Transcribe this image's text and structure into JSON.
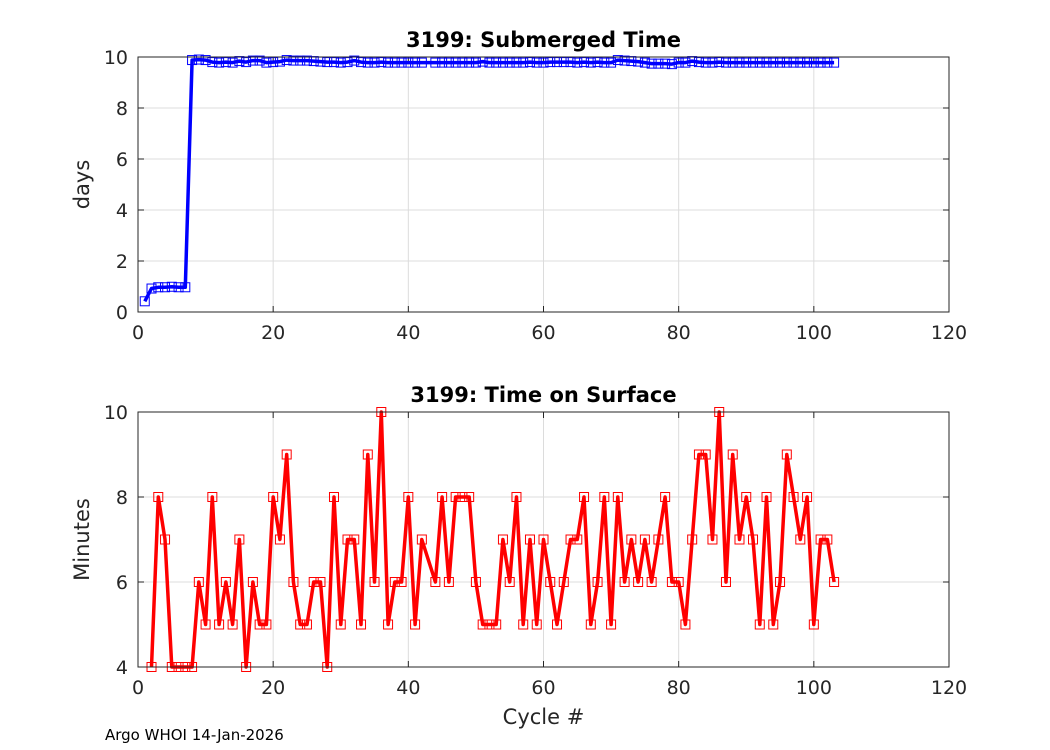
{
  "footer": "Argo WHOI 14-Jan-2026",
  "chart_data": [
    {
      "type": "line",
      "title": "3199: Submerged Time",
      "xlabel": "",
      "ylabel": "days",
      "xlim": [
        0,
        120
      ],
      "ylim": [
        0,
        10
      ],
      "xticks": [
        0,
        20,
        40,
        60,
        80,
        100,
        120
      ],
      "yticks": [
        0,
        2,
        4,
        6,
        8,
        10
      ],
      "grid": true,
      "series": [
        {
          "name": "Submerged Time",
          "color": "#0000ff",
          "marker": "square",
          "x": [
            1,
            2,
            3,
            4,
            5,
            6,
            7,
            8,
            9,
            10,
            11,
            12,
            13,
            14,
            15,
            16,
            17,
            18,
            19,
            20,
            21,
            22,
            23,
            24,
            25,
            26,
            27,
            28,
            29,
            30,
            31,
            32,
            33,
            34,
            35,
            36,
            37,
            38,
            39,
            40,
            41,
            42,
            44,
            45,
            46,
            47,
            48,
            49,
            50,
            51,
            52,
            53,
            54,
            55,
            56,
            57,
            58,
            59,
            60,
            61,
            62,
            63,
            64,
            65,
            66,
            67,
            68,
            69,
            70,
            71,
            72,
            73,
            74,
            75,
            76,
            77,
            78,
            79,
            80,
            81,
            82,
            83,
            84,
            85,
            86,
            87,
            88,
            89,
            90,
            91,
            92,
            93,
            94,
            95,
            96,
            97,
            98,
            99,
            100,
            101,
            102,
            103
          ],
          "values": [
            0.42,
            0.92,
            0.97,
            0.97,
            0.99,
            0.97,
            0.97,
            9.88,
            9.9,
            9.88,
            9.8,
            9.78,
            9.8,
            9.78,
            9.84,
            9.8,
            9.86,
            9.86,
            9.78,
            9.8,
            9.82,
            9.88,
            9.86,
            9.86,
            9.86,
            9.84,
            9.82,
            9.8,
            9.8,
            9.78,
            9.8,
            9.86,
            9.8,
            9.78,
            9.78,
            9.8,
            9.78,
            9.78,
            9.78,
            9.78,
            9.78,
            9.78,
            9.78,
            9.78,
            9.78,
            9.78,
            9.78,
            9.78,
            9.78,
            9.82,
            9.78,
            9.78,
            9.78,
            9.78,
            9.78,
            9.78,
            9.8,
            9.78,
            9.78,
            9.8,
            9.8,
            9.8,
            9.8,
            9.78,
            9.8,
            9.78,
            9.8,
            9.78,
            9.78,
            9.88,
            9.86,
            9.84,
            9.82,
            9.78,
            9.74,
            9.74,
            9.74,
            9.72,
            9.78,
            9.78,
            9.84,
            9.8,
            9.78,
            9.78,
            9.8,
            9.78,
            9.78,
            9.78,
            9.78,
            9.78,
            9.78,
            9.78,
            9.78,
            9.78,
            9.78,
            9.78,
            9.78,
            9.78,
            9.78,
            9.78,
            9.78,
            9.78
          ]
        }
      ]
    },
    {
      "type": "line",
      "title": "3199: Time on Surface",
      "xlabel": "Cycle #",
      "ylabel": "Minutes",
      "xlim": [
        0,
        120
      ],
      "ylim": [
        4,
        10
      ],
      "xticks": [
        0,
        20,
        40,
        60,
        80,
        100,
        120
      ],
      "yticks": [
        4,
        6,
        8,
        10
      ],
      "grid": true,
      "series": [
        {
          "name": "Time on Surface",
          "color": "#ff0000",
          "marker": "square",
          "x": [
            2,
            3,
            4,
            5,
            6,
            7,
            8,
            9,
            10,
            11,
            12,
            13,
            14,
            15,
            16,
            17,
            18,
            19,
            20,
            21,
            22,
            23,
            24,
            25,
            26,
            27,
            28,
            29,
            30,
            31,
            32,
            33,
            34,
            35,
            36,
            37,
            38,
            39,
            40,
            41,
            42,
            44,
            45,
            46,
            47,
            48,
            49,
            50,
            51,
            52,
            53,
            54,
            55,
            56,
            57,
            58,
            59,
            60,
            61,
            62,
            63,
            64,
            65,
            66,
            67,
            68,
            69,
            70,
            71,
            72,
            73,
            74,
            75,
            76,
            77,
            78,
            79,
            80,
            81,
            82,
            83,
            84,
            85,
            86,
            87,
            88,
            89,
            90,
            91,
            92,
            93,
            94,
            95,
            96,
            97,
            98,
            99,
            100,
            101,
            102,
            103
          ],
          "values": [
            4,
            8,
            7,
            4,
            4,
            4,
            4,
            6,
            5,
            8,
            5,
            6,
            5,
            7,
            4,
            6,
            5,
            5,
            8,
            7,
            9,
            6,
            5,
            5,
            6,
            6,
            4,
            8,
            5,
            7,
            7,
            5,
            9,
            6,
            10,
            5,
            6,
            6,
            8,
            5,
            7,
            6,
            8,
            6,
            8,
            8,
            8,
            6,
            5,
            5,
            5,
            7,
            6,
            8,
            5,
            7,
            5,
            7,
            6,
            5,
            6,
            7,
            7,
            8,
            5,
            6,
            8,
            5,
            8,
            6,
            7,
            6,
            7,
            6,
            7,
            8,
            6,
            6,
            5,
            7,
            9,
            9,
            7,
            10,
            6,
            9,
            7,
            8,
            7,
            5,
            8,
            5,
            6,
            9,
            8,
            7,
            8,
            5,
            7,
            7,
            6
          ]
        }
      ]
    }
  ]
}
